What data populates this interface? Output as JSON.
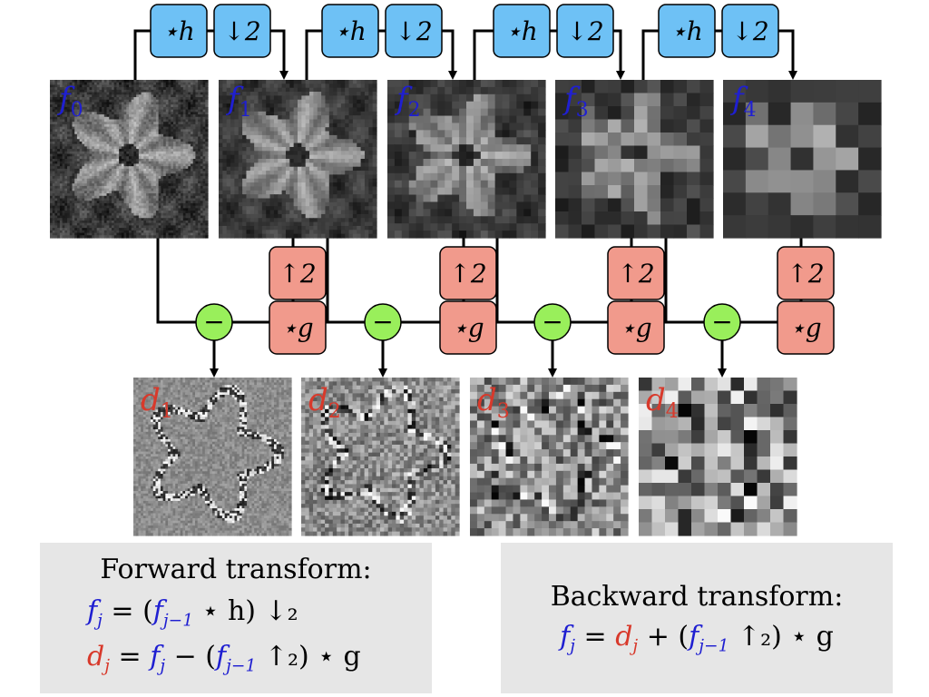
{
  "colors": {
    "blue_box": "#6ec1f5",
    "red_box": "#f19a8c",
    "green_circle": "#99ef5b",
    "blue_text": "#1f1fd1",
    "red_text": "#d8392b",
    "panel_bg": "#e6e6e6"
  },
  "down_ops": {
    "conv": "⋆h",
    "down": "↓2"
  },
  "up_ops": {
    "up": "↑2",
    "conv": "⋆g"
  },
  "minus": "−",
  "f_labels": [
    {
      "base": "f",
      "sub": "0"
    },
    {
      "base": "f",
      "sub": "1"
    },
    {
      "base": "f",
      "sub": "2"
    },
    {
      "base": "f",
      "sub": "3"
    },
    {
      "base": "f",
      "sub": "4"
    }
  ],
  "d_labels": [
    {
      "base": "d",
      "sub": "1"
    },
    {
      "base": "d",
      "sub": "2"
    },
    {
      "base": "d",
      "sub": "3"
    },
    {
      "base": "d",
      "sub": "4"
    }
  ],
  "forward": {
    "title": "Forward transform:",
    "eq1": "f_j = (f_{j−1} ⋆ h) ↓2",
    "eq2": "d_j = f_j − (f_{j−1} ↑2) ⋆ g"
  },
  "backward": {
    "title": "Backward transform:",
    "eq1": "f_j = d_j + (f_{j−1} ↑2) ⋆ g"
  }
}
